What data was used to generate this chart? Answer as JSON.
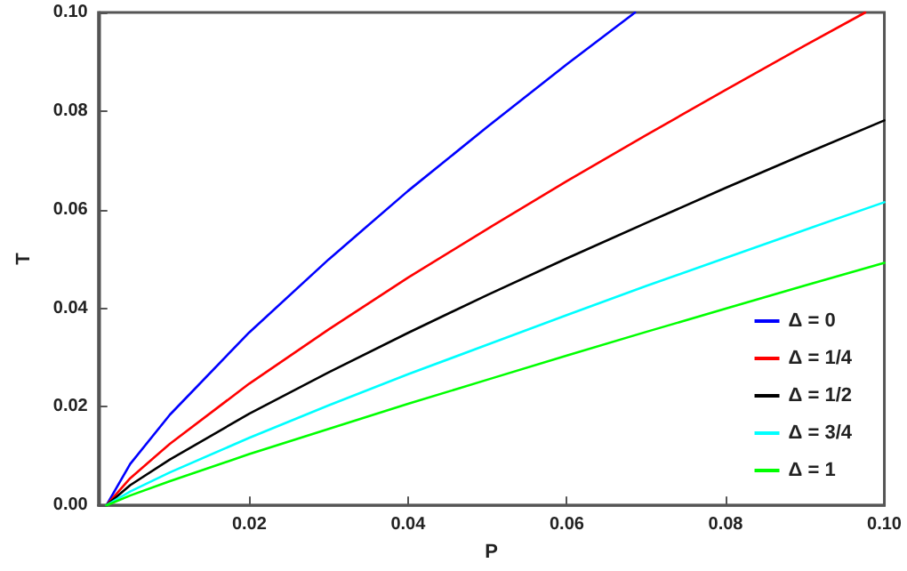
{
  "chart_data": {
    "type": "line",
    "xlabel": "P",
    "ylabel": "T",
    "xlim": [
      0.001,
      0.1
    ],
    "ylim": [
      0,
      0.1
    ],
    "xticks": [
      0.02,
      0.04,
      0.06,
      0.08,
      {
        "value": 0.1,
        "label": "0.10"
      }
    ],
    "yticks": [
      {
        "value": 0,
        "label": "0.00"
      },
      0.02,
      0.04,
      0.06,
      0.08,
      {
        "value": 0.1,
        "label": "0.10"
      }
    ],
    "grid": false,
    "legend": "bottom right",
    "marker": "none",
    "line_style": "solid",
    "series": [
      {
        "name": "Δ = 0",
        "color": "#0000ff",
        "x": [
          0.002,
          0.005,
          0.01,
          0.02,
          0.03,
          0.04,
          0.05,
          0.06,
          0.0686
        ],
        "values": [
          0,
          0.0084,
          0.0184,
          0.0351,
          0.0499,
          0.0638,
          0.0768,
          0.0895,
          0.1
        ]
      },
      {
        "name": "Δ = 1/4",
        "color": "#ff0000",
        "x": [
          0.002,
          0.005,
          0.01,
          0.02,
          0.03,
          0.04,
          0.05,
          0.06,
          0.07,
          0.08,
          0.09,
          0.0976
        ],
        "values": [
          0,
          0.0055,
          0.0125,
          0.0247,
          0.0357,
          0.0462,
          0.0561,
          0.0658,
          0.0751,
          0.0843,
          0.0933,
          0.1
        ]
      },
      {
        "name": "Δ = 1/2",
        "color": "#000000",
        "x": [
          0.002,
          0.005,
          0.01,
          0.02,
          0.03,
          0.04,
          0.05,
          0.06,
          0.07,
          0.08,
          0.09,
          0.1
        ],
        "values": [
          0,
          0.0041,
          0.0093,
          0.0186,
          0.027,
          0.035,
          0.0427,
          0.0501,
          0.0573,
          0.0644,
          0.0713,
          0.0781
        ]
      },
      {
        "name": "Δ = 3/4",
        "color": "#00ffff",
        "x": [
          0.002,
          0.005,
          0.01,
          0.02,
          0.03,
          0.04,
          0.05,
          0.06,
          0.07,
          0.08,
          0.09,
          0.1
        ],
        "values": [
          0,
          0.0028,
          0.0067,
          0.0137,
          0.0203,
          0.0266,
          0.0326,
          0.0386,
          0.0445,
          0.0502,
          0.0559,
          0.0615
        ]
      },
      {
        "name": "Δ = 1",
        "color": "#00ff00",
        "x": [
          0.002,
          0.005,
          0.01,
          0.02,
          0.03,
          0.04,
          0.05,
          0.06,
          0.07,
          0.08,
          0.09,
          0.1
        ],
        "values": [
          0,
          0.002,
          0.0049,
          0.0104,
          0.0155,
          0.0206,
          0.0255,
          0.0304,
          0.0352,
          0.0399,
          0.0446,
          0.0492
        ]
      }
    ]
  }
}
